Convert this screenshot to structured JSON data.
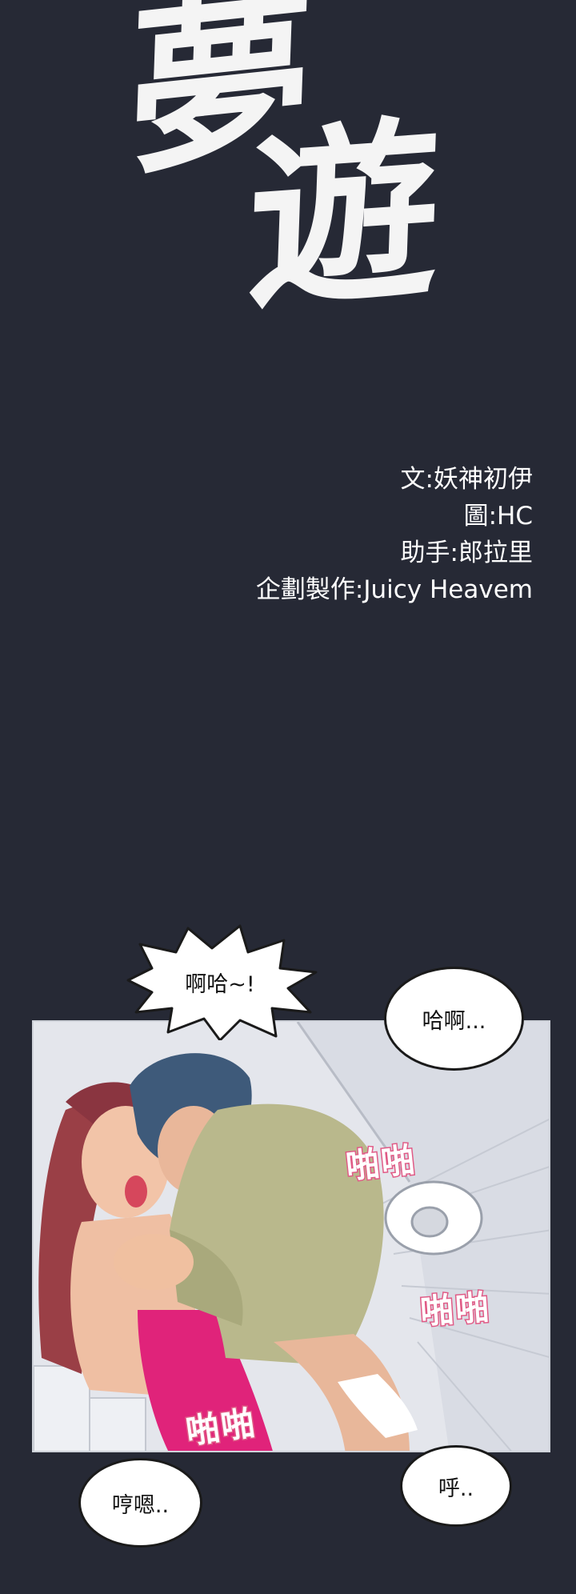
{
  "title": {
    "char_1": "夢",
    "char_2": "遊"
  },
  "credits": [
    "文:妖神初伊",
    "圖:HC",
    "助手:郎拉里",
    "企劃製作:Juicy Heavem"
  ],
  "bubbles": {
    "shout": "啊哈~!",
    "top_right": "哈啊...",
    "bottom_left": "哼嗯..",
    "bottom_right": "呼.."
  },
  "sfx": [
    "啪啪",
    "啪啪",
    "啪啪"
  ],
  "colors": {
    "background": "#262935",
    "sfx_outline": "#e05a86"
  }
}
